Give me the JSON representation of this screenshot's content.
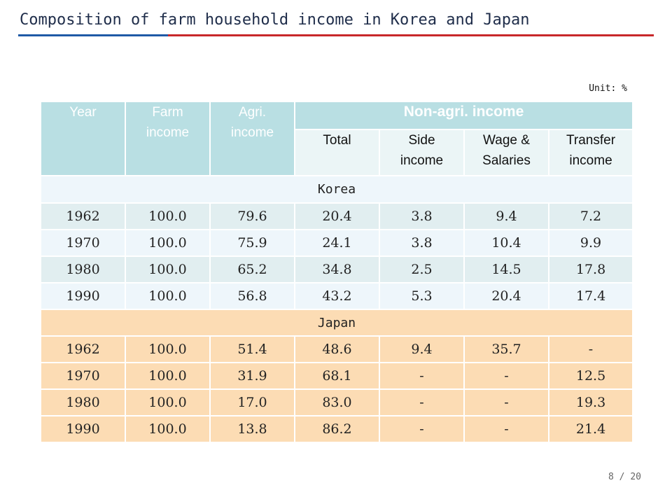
{
  "title": "Composition of farm household income in Korea and Japan",
  "unit": "Unit: %",
  "headers": {
    "year": "Year",
    "farm_income": "Farm income",
    "agri_income": "Agri. income",
    "non_agri": "Non-agri. income",
    "sub": [
      "Total",
      "Side income",
      "Wage & Salaries",
      "Transfer income"
    ]
  },
  "sections": [
    {
      "name": "Korea",
      "rows": [
        [
          "1962",
          "100.0",
          "79.6",
          "20.4",
          "3.8",
          "9.4",
          "7.2"
        ],
        [
          "1970",
          "100.0",
          "75.9",
          "24.1",
          "3.8",
          "10.4",
          "9.9"
        ],
        [
          "1980",
          "100.0",
          "65.2",
          "34.8",
          "2.5",
          "14.5",
          "17.8"
        ],
        [
          "1990",
          "100.0",
          "56.8",
          "43.2",
          "5.3",
          "20.4",
          "17.4"
        ]
      ]
    },
    {
      "name": "Japan",
      "rows": [
        [
          "1962",
          "100.0",
          "51.4",
          "48.6",
          "9.4",
          "35.7",
          "-"
        ],
        [
          "1970",
          "100.0",
          "31.9",
          "68.1",
          "-",
          "-",
          "12.5"
        ],
        [
          "1980",
          "100.0",
          "17.0",
          "83.0",
          "-",
          "-",
          "19.3"
        ],
        [
          "1990",
          "100.0",
          "13.8",
          "86.2",
          "-",
          "-",
          "21.4"
        ]
      ]
    }
  ],
  "pager": "8 / 20",
  "colors": {
    "header_fill": "#b9dfe3",
    "subheader_fill": "#ebf5f6",
    "korea_fill": "#e1eef0",
    "japan_fill": "#fcdcb4",
    "title_rule_blue": "#1f5aa6",
    "title_rule_red": "#c8282a"
  }
}
